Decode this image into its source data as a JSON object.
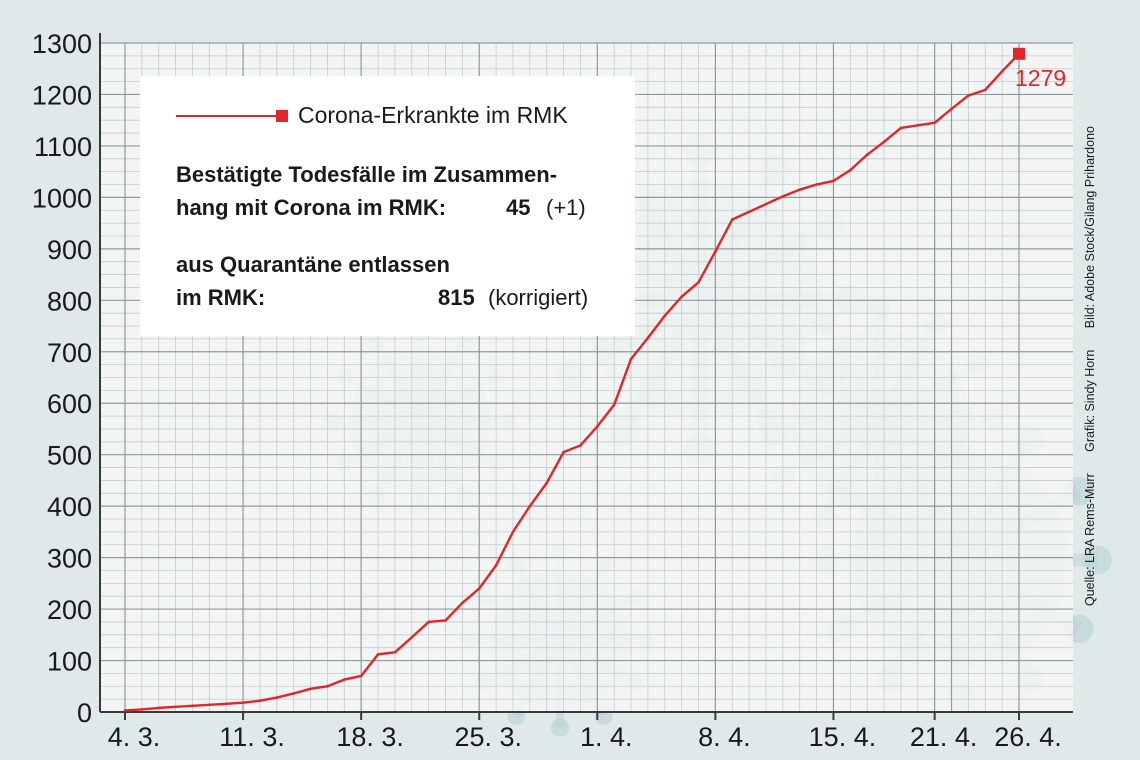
{
  "chart_data": {
    "type": "line",
    "series": [
      {
        "name": "Corona-Erkrankte im RMK",
        "color": "#e0262a",
        "points": [
          [
            "4.3.",
            3
          ],
          [
            "5.3.",
            5
          ],
          [
            "6.3.",
            8
          ],
          [
            "7.3.",
            10
          ],
          [
            "8.3.",
            12
          ],
          [
            "9.3.",
            14
          ],
          [
            "10.3.",
            16
          ],
          [
            "11.3.",
            18
          ],
          [
            "12.3.",
            22
          ],
          [
            "13.3.",
            28
          ],
          [
            "14.3.",
            36
          ],
          [
            "15.3.",
            45
          ],
          [
            "16.3.",
            50
          ],
          [
            "17.3.",
            63
          ],
          [
            "18.3.",
            70
          ],
          [
            "19.3.",
            112
          ],
          [
            "20.3.",
            116
          ],
          [
            "21.3.",
            145
          ],
          [
            "22.3.",
            175
          ],
          [
            "23.3.",
            178
          ],
          [
            "24.3.",
            212
          ],
          [
            "25.3.",
            240
          ],
          [
            "26.3.",
            285
          ],
          [
            "27.3.",
            350
          ],
          [
            "28.3.",
            400
          ],
          [
            "29.3.",
            445
          ],
          [
            "30.3.",
            505
          ],
          [
            "31.3.",
            518
          ],
          [
            "1.4.",
            555
          ],
          [
            "2.4.",
            597
          ],
          [
            "3.4.",
            686
          ],
          [
            "4.4.",
            727
          ],
          [
            "5.4.",
            770
          ],
          [
            "6.4.",
            807
          ],
          [
            "7.4.",
            835
          ],
          [
            "8.4.",
            895
          ],
          [
            "9.4.",
            957
          ],
          [
            "10.4.",
            972
          ],
          [
            "11.4.",
            987
          ],
          [
            "12.4.",
            1002
          ],
          [
            "13.4.",
            1015
          ],
          [
            "14.4.",
            1025
          ],
          [
            "15.4.",
            1032
          ],
          [
            "16.4.",
            1053
          ],
          [
            "17.4.",
            1083
          ],
          [
            "18.4.",
            1108
          ],
          [
            "19.4.",
            1135
          ],
          [
            "20.4.",
            1140
          ],
          [
            "21.4.",
            1145
          ],
          [
            "22.4.",
            1172
          ],
          [
            "23.4.",
            1198
          ],
          [
            "24.4.",
            1209
          ],
          [
            "25.4.",
            1245
          ],
          [
            "26.4.",
            1279
          ]
        ]
      }
    ],
    "x_tick_labels": [
      "4. 3.",
      "11. 3.",
      "18. 3.",
      "25. 3.",
      "1. 4.",
      "8. 4.",
      "15. 4.",
      "21. 4.",
      "26. 4."
    ],
    "x_tick_days": [
      0,
      7,
      14,
      21,
      28,
      35,
      42,
      48,
      53
    ],
    "y_ticks": [
      "0",
      "100",
      "200",
      "300",
      "400",
      "500",
      "600",
      "700",
      "800",
      "900",
      "1000",
      "1100",
      "1200",
      "1300"
    ],
    "ylim": [
      0,
      1300
    ],
    "grid": true,
    "end_label": "1279"
  },
  "legend": {
    "series_label": "Corona-Erkrankte im RMK",
    "deaths_line1": "Bestätigte Todesfälle im Zusammen-",
    "deaths_line2": "hang mit Corona im RMK:",
    "deaths_value": "45",
    "deaths_note": "(+1)",
    "quarantine_line1": "aus Quarantäne entlassen",
    "quarantine_line2": "im RMK:",
    "quarantine_value": "815",
    "quarantine_note": "(korrigiert)"
  },
  "credits": {
    "source": "Quelle: LRA Rems-Murr",
    "graphic": "Grafik: Sindy Horn",
    "image": "Bild: Adobe Stock/Gilang Prihardono"
  }
}
